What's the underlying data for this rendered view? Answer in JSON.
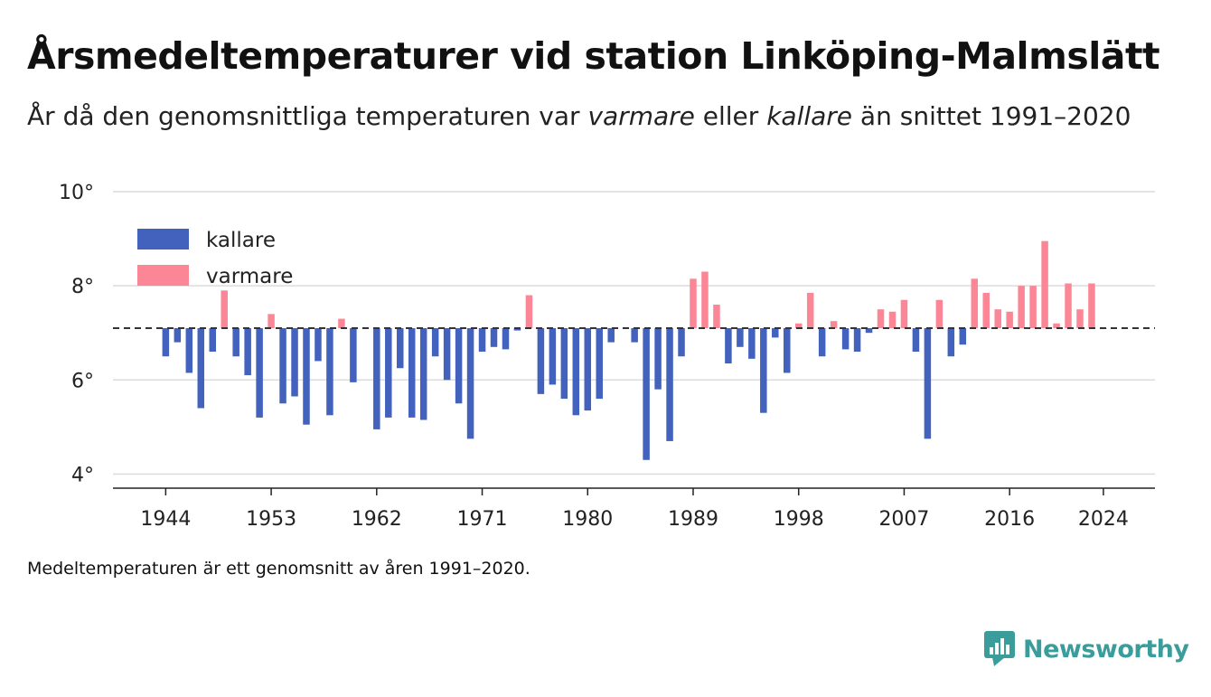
{
  "title": "Årsmedeltemperaturer vid station Linköping-Malmslätt",
  "subtitle": {
    "part1": "År då den genomsnittliga temperaturen var ",
    "em1": "varmare",
    "part2": " eller ",
    "em2": "kallare",
    "part3": " än snittet 1991–2020"
  },
  "footnote": "Medeltemperaturen är ett genomsnitt av åren 1991–2020.",
  "brand": {
    "name": "Newsworthy",
    "icon": "newsworthy-logo-icon"
  },
  "colors": {
    "kallare": "#4262bd",
    "varmare": "#fb8796",
    "accent": "#3b9c9c"
  },
  "chart_data": {
    "type": "bar",
    "baseline": 7.1,
    "baseline_style": "dashed",
    "ylim": [
      3.7,
      10
    ],
    "yticks": [
      {
        "value": 10,
        "label": "10°"
      },
      {
        "value": 8,
        "label": "8°"
      },
      {
        "value": 6,
        "label": "6°"
      },
      {
        "value": 4,
        "label": "4°"
      }
    ],
    "xlim": [
      1939.5,
      2028.4
    ],
    "xticks": [
      {
        "value": 1944,
        "label": "1944"
      },
      {
        "value": 1953,
        "label": "1953"
      },
      {
        "value": 1962,
        "label": "1962"
      },
      {
        "value": 1971,
        "label": "1971"
      },
      {
        "value": 1980,
        "label": "1980"
      },
      {
        "value": 1989,
        "label": "1989"
      },
      {
        "value": 1998,
        "label": "1998"
      },
      {
        "value": 2007,
        "label": "2007"
      },
      {
        "value": 2016,
        "label": "2016"
      },
      {
        "value": 2024,
        "label": "2024"
      }
    ],
    "grid": true,
    "legend": {
      "placement": "top-left",
      "items": [
        {
          "key": "kallare",
          "label": "kallare"
        },
        {
          "key": "varmare",
          "label": "varmare"
        }
      ]
    },
    "years": [
      1944,
      1945,
      1946,
      1947,
      1948,
      1949,
      1950,
      1951,
      1952,
      1953,
      1954,
      1955,
      1956,
      1957,
      1958,
      1959,
      1960,
      1962,
      1963,
      1964,
      1965,
      1966,
      1967,
      1968,
      1969,
      1970,
      1971,
      1972,
      1973,
      1974,
      1975,
      1976,
      1977,
      1978,
      1979,
      1980,
      1981,
      1982,
      1984,
      1985,
      1986,
      1987,
      1988,
      1989,
      1990,
      1991,
      1992,
      1993,
      1994,
      1995,
      1996,
      1997,
      1998,
      1999,
      2000,
      2001,
      2002,
      2003,
      2004,
      2005,
      2006,
      2007,
      2008,
      2009,
      2010,
      2011,
      2012,
      2013,
      2014,
      2015,
      2016,
      2017,
      2018,
      2019,
      2020,
      2021,
      2022,
      2023,
      2024
    ],
    "values": [
      6.5,
      6.8,
      6.15,
      5.4,
      6.6,
      7.9,
      6.5,
      6.1,
      5.2,
      7.4,
      5.5,
      5.65,
      5.05,
      6.4,
      5.25,
      7.3,
      5.95,
      4.95,
      5.2,
      6.25,
      5.2,
      5.15,
      6.5,
      6.0,
      5.5,
      4.75,
      6.6,
      6.7,
      6.65,
      7.05,
      7.8,
      5.7,
      5.9,
      5.6,
      5.25,
      5.35,
      5.6,
      6.8,
      6.8,
      4.3,
      5.8,
      4.7,
      6.5,
      8.15,
      8.3,
      7.6,
      6.35,
      6.7,
      6.45,
      5.3,
      6.9,
      6.15,
      7.2,
      7.85,
      6.5,
      7.25,
      6.65,
      6.6,
      7.0,
      7.5,
      7.45,
      7.7,
      6.6,
      4.75,
      7.7,
      6.5,
      6.75,
      8.15,
      7.85,
      7.5,
      7.45,
      8.0,
      8.0,
      8.95,
      7.2,
      8.05,
      7.5,
      8.05,
      7.1
    ]
  }
}
